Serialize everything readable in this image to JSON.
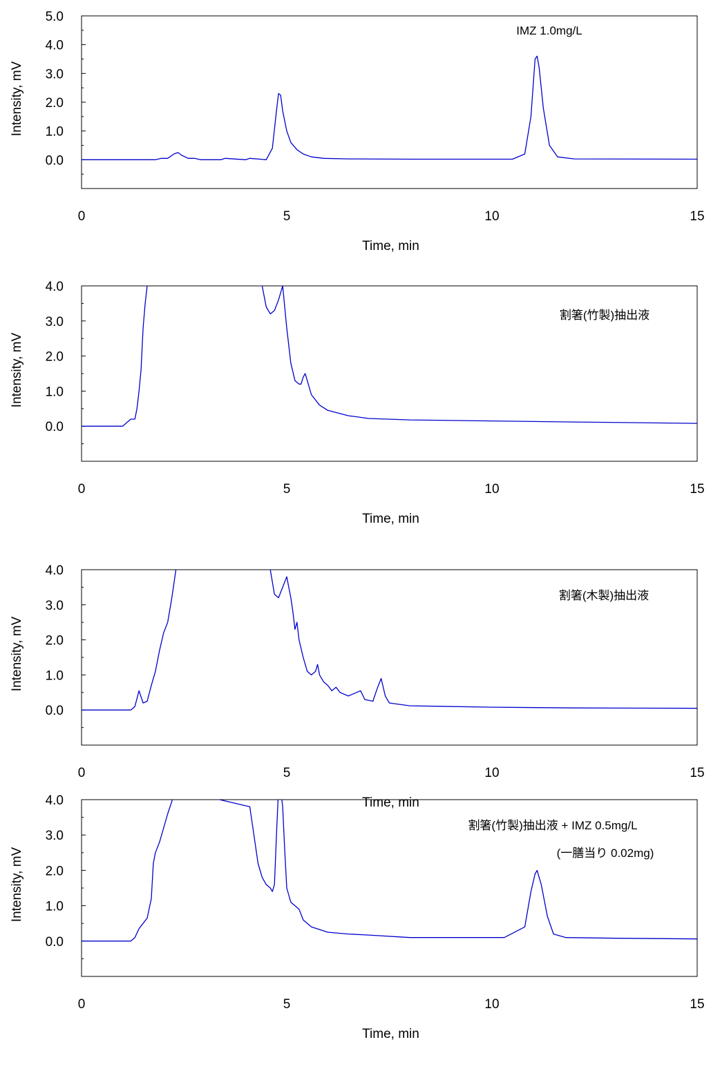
{
  "chart_data": [
    {
      "type": "line",
      "xlabel": "Time, min",
      "ylabel": "Intensity, mV",
      "xlim": [
        0,
        15
      ],
      "ylim": [
        -1,
        5
      ],
      "x_ticks": [
        0,
        5,
        10,
        15
      ],
      "y_ticks": [
        0,
        1,
        2,
        3,
        4,
        5
      ],
      "y_tick_labels": [
        "0.0",
        "1.0",
        "2.0",
        "3.0",
        "4.0",
        "5.0"
      ],
      "annotations": [
        "IMZ 1.0mg/L"
      ],
      "color": "#0000cc",
      "series": [
        {
          "x": [
            0,
            1.8,
            1.95,
            2.1,
            2.25,
            2.35,
            2.45,
            2.6,
            2.75,
            2.9,
            3.4,
            3.5,
            4.0,
            4.1,
            4.5,
            4.65,
            4.75,
            4.8,
            4.85,
            4.9,
            5.0,
            5.1,
            5.25,
            5.4,
            5.6,
            5.9,
            6.5,
            8,
            10.5,
            10.8,
            10.95,
            11.05,
            11.1,
            11.15,
            11.25,
            11.4,
            11.6,
            12,
            15
          ],
          "y": [
            0,
            0,
            0.05,
            0.05,
            0.2,
            0.25,
            0.15,
            0.05,
            0.05,
            0,
            0,
            0.05,
            0,
            0.05,
            0,
            0.4,
            1.7,
            2.3,
            2.25,
            1.7,
            1.0,
            0.6,
            0.35,
            0.2,
            0.1,
            0.05,
            0.03,
            0.02,
            0.02,
            0.2,
            1.5,
            3.5,
            3.6,
            3.2,
            1.8,
            0.5,
            0.1,
            0.03,
            0.02
          ]
        }
      ]
    },
    {
      "type": "line",
      "xlabel": "Time, min",
      "ylabel": "Intensity, mV",
      "xlim": [
        0,
        15
      ],
      "ylim": [
        -1,
        4
      ],
      "x_ticks": [
        0,
        5,
        10,
        15
      ],
      "y_ticks": [
        0,
        1,
        2,
        3,
        4
      ],
      "y_tick_labels": [
        "0.0",
        "1.0",
        "2.0",
        "3.0",
        "4.0"
      ],
      "annotations": [
        "割箸(竹製)抽出液"
      ],
      "color": "#0000cc",
      "series": [
        {
          "x": [
            0,
            1.0,
            1.1,
            1.2,
            1.3,
            1.35,
            1.4,
            1.45,
            1.5,
            1.55,
            1.6,
            1.62,
            4.4,
            4.5,
            4.6,
            4.7,
            4.8,
            4.9,
            5.0,
            5.1,
            5.2,
            5.3,
            5.35,
            5.4,
            5.45,
            5.5,
            5.6,
            5.8,
            6.0,
            6.5,
            7.0,
            8.0,
            10.0,
            12.0,
            15.0
          ],
          "y": [
            0,
            0,
            0.1,
            0.2,
            0.2,
            0.5,
            1.0,
            1.6,
            2.8,
            3.5,
            4.0,
            4.3,
            4.0,
            3.4,
            3.2,
            3.3,
            3.6,
            4.0,
            2.8,
            1.8,
            1.3,
            1.2,
            1.2,
            1.4,
            1.5,
            1.3,
            0.9,
            0.6,
            0.45,
            0.3,
            0.22,
            0.18,
            0.15,
            0.12,
            0.08
          ]
        }
      ]
    },
    {
      "type": "line",
      "xlabel": "Time, min",
      "ylabel": "Intensity, mV",
      "xlim": [
        0,
        15
      ],
      "ylim": [
        -1,
        4
      ],
      "x_ticks": [
        0,
        5,
        10,
        15
      ],
      "y_ticks": [
        0,
        1,
        2,
        3,
        4
      ],
      "y_tick_labels": [
        "0.0",
        "1.0",
        "2.0",
        "3.0",
        "4.0"
      ],
      "annotations": [
        "割箸(木製)抽出液"
      ],
      "color": "#0000cc",
      "series": [
        {
          "x": [
            0,
            1.2,
            1.3,
            1.4,
            1.5,
            1.6,
            1.7,
            1.8,
            1.9,
            2.0,
            2.1,
            2.2,
            2.3,
            2.35,
            4.6,
            4.7,
            4.8,
            4.9,
            5.0,
            5.1,
            5.15,
            5.2,
            5.25,
            5.3,
            5.4,
            5.5,
            5.6,
            5.7,
            5.75,
            5.8,
            5.9,
            6.0,
            6.1,
            6.2,
            6.3,
            6.5,
            6.7,
            6.8,
            6.9,
            7.1,
            7.2,
            7.3,
            7.4,
            7.5,
            8,
            10,
            12,
            15
          ],
          "y": [
            0,
            0,
            0.1,
            0.55,
            0.2,
            0.25,
            0.7,
            1.1,
            1.7,
            2.2,
            2.5,
            3.2,
            4.0,
            4.3,
            4.0,
            3.3,
            3.2,
            3.5,
            3.8,
            3.2,
            2.8,
            2.3,
            2.5,
            2.0,
            1.5,
            1.1,
            1.0,
            1.1,
            1.3,
            1.0,
            0.8,
            0.7,
            0.55,
            0.65,
            0.5,
            0.4,
            0.5,
            0.55,
            0.3,
            0.25,
            0.6,
            0.9,
            0.4,
            0.2,
            0.12,
            0.08,
            0.06,
            0.05
          ]
        }
      ]
    },
    {
      "type": "line",
      "xlabel": "Time, min",
      "ylabel": "Intensity, mV",
      "xlim": [
        0,
        15
      ],
      "ylim": [
        -1,
        4
      ],
      "x_ticks": [
        0,
        5,
        10,
        15
      ],
      "y_ticks": [
        0,
        1,
        2,
        3,
        4
      ],
      "y_tick_labels": [
        "0.0",
        "1.0",
        "2.0",
        "3.0",
        "4.0"
      ],
      "annotations": [
        "割箸(竹製)抽出液 + IMZ 0.5mg/L",
        "(一膳当り 0.02mg)"
      ],
      "color": "#0000cc",
      "series": [
        {
          "x": [
            0,
            1.2,
            1.3,
            1.4,
            1.5,
            1.6,
            1.7,
            1.75,
            1.8,
            1.9,
            2.0,
            2.1,
            2.2,
            2.25,
            4.1,
            4.2,
            4.3,
            4.4,
            4.5,
            4.6,
            4.65,
            4.7,
            4.75,
            4.8,
            4.85,
            4.9,
            4.95,
            5.0,
            5.1,
            5.2,
            5.3,
            5.4,
            5.6,
            6.0,
            6.5,
            7.0,
            8.0,
            10.3,
            10.8,
            10.95,
            11.05,
            11.1,
            11.2,
            11.35,
            11.5,
            11.8,
            13.0,
            15.0
          ],
          "y": [
            0,
            0,
            0.1,
            0.35,
            0.5,
            0.65,
            1.2,
            2.2,
            2.5,
            2.8,
            3.2,
            3.6,
            3.95,
            4.3,
            3.8,
            3.0,
            2.2,
            1.8,
            1.6,
            1.5,
            1.4,
            1.6,
            3.0,
            4.3,
            4.3,
            3.8,
            2.6,
            1.5,
            1.1,
            1.0,
            0.9,
            0.6,
            0.4,
            0.25,
            0.2,
            0.17,
            0.1,
            0.1,
            0.4,
            1.4,
            1.9,
            2.0,
            1.6,
            0.7,
            0.2,
            0.1,
            0.08,
            0.06
          ]
        }
      ]
    }
  ]
}
